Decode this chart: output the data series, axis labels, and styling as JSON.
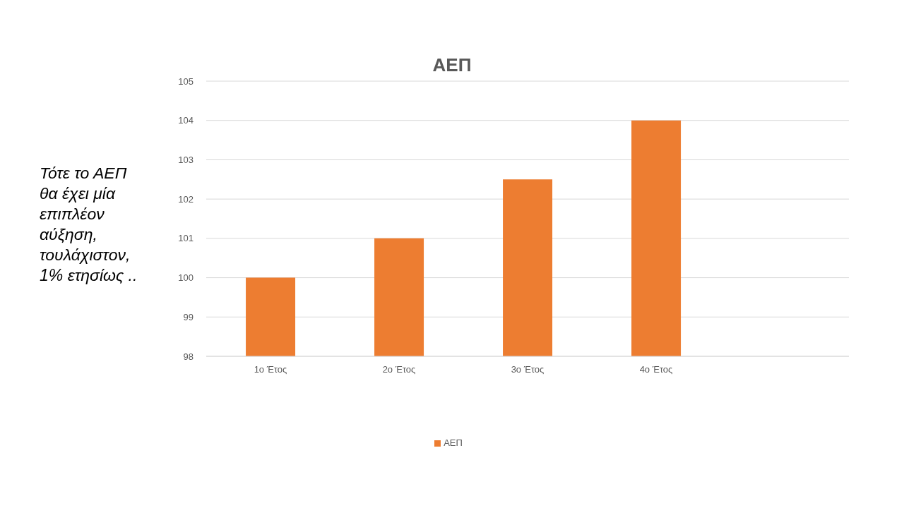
{
  "chart_data": {
    "type": "bar",
    "title": "ΑΕΠ",
    "categories": [
      "1ο Έτος",
      "2ο Έτος",
      "3ο Έτος",
      "4ο Έτος",
      null
    ],
    "series": [
      {
        "name": "ΑΕΠ",
        "color": "#ed7d31",
        "values": [
          100,
          101,
          102.5,
          104,
          null
        ]
      }
    ],
    "ylim": [
      98,
      105
    ],
    "yticks": [
      98,
      99,
      100,
      101,
      102,
      103,
      104,
      105
    ],
    "grid": "y",
    "legend": "bottom",
    "annotations": [
      "Τότε το ΑΕΠ θα έχει μία επιπλέον αύξηση, τουλάχιστον, 1% ετησίως .."
    ]
  }
}
